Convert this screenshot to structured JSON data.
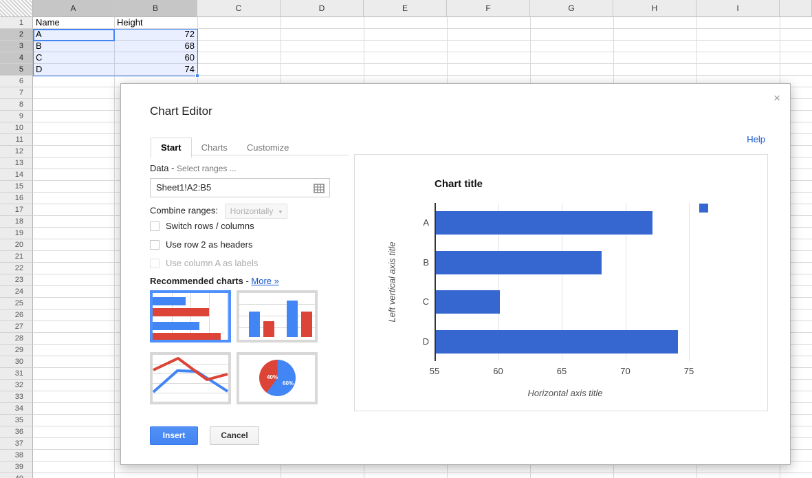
{
  "colors": {
    "accent": "#4285f4",
    "link": "#1155cc",
    "bar": "#3667d1",
    "thumb_blue": "#4285f4",
    "thumb_red": "#db4437",
    "selected_header_bg": "#c6c6c6"
  },
  "spreadsheet": {
    "columns": [
      "A",
      "B",
      "C",
      "D",
      "E",
      "F",
      "G",
      "H",
      "I",
      ""
    ],
    "selected_columns": [
      "A",
      "B"
    ],
    "row_count": 40,
    "selected_rows": [
      2,
      3,
      4,
      5
    ],
    "cells": [
      {
        "c": "A",
        "r": 1,
        "v": "Name"
      },
      {
        "c": "B",
        "r": 1,
        "v": "Height"
      },
      {
        "c": "A",
        "r": 2,
        "v": "A"
      },
      {
        "c": "B",
        "r": 2,
        "v": "72",
        "num": true
      },
      {
        "c": "A",
        "r": 3,
        "v": "B"
      },
      {
        "c": "B",
        "r": 3,
        "v": "68",
        "num": true
      },
      {
        "c": "A",
        "r": 4,
        "v": "C"
      },
      {
        "c": "B",
        "r": 4,
        "v": "60",
        "num": true
      },
      {
        "c": "A",
        "r": 5,
        "v": "D"
      },
      {
        "c": "B",
        "r": 5,
        "v": "74",
        "num": true
      }
    ],
    "selection_range": "A2:B5",
    "active_cell": "A2"
  },
  "dialog": {
    "title": "Chart Editor",
    "close_label": "×",
    "help_label": "Help",
    "tabs": [
      {
        "label": "Start",
        "active": true
      },
      {
        "label": "Charts",
        "active": false
      },
      {
        "label": "Customize",
        "active": false
      }
    ],
    "data_section": {
      "label": "Data -",
      "sublabel": "Select ranges ...",
      "range_value": "Sheet1!A2:B5",
      "combine_label": "Combine ranges:",
      "combine_value": "Horizontally",
      "checkboxes": [
        {
          "label": "Switch rows / columns",
          "checked": false,
          "disabled": false
        },
        {
          "label": "Use row 2 as headers",
          "checked": false,
          "disabled": false
        },
        {
          "label": "Use column A as labels",
          "checked": false,
          "disabled": true
        }
      ]
    },
    "recommended": {
      "label": "Recommended charts",
      "separator": " - ",
      "more_link": "More »",
      "pie_labels": {
        "red": "40%",
        "blue": "60%"
      }
    },
    "buttons": {
      "insert": "Insert",
      "cancel": "Cancel"
    }
  },
  "chart_data": {
    "type": "bar",
    "orientation": "horizontal",
    "title": "Chart title",
    "categories": [
      "A",
      "B",
      "C",
      "D"
    ],
    "series": [
      {
        "values": [
          72,
          68,
          60,
          74
        ],
        "color": "#3667d1"
      }
    ],
    "xlabel": "Horizontal axis title",
    "ylabel": "Left vertical axis title",
    "x_ticks": [
      55,
      60,
      65,
      70,
      75
    ],
    "xlim": [
      55,
      75.5
    ],
    "grid": true,
    "legend_position": "top-right"
  }
}
